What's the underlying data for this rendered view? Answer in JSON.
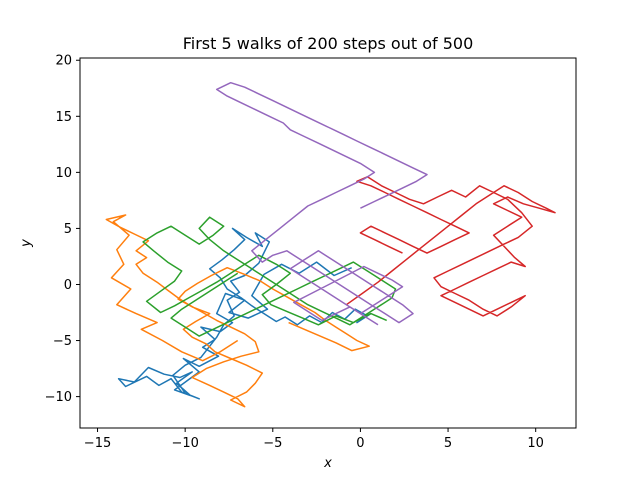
{
  "chart_data": {
    "type": "line",
    "title": "First 5 walks of 200 steps out of 500",
    "xlabel": "x",
    "ylabel": "y",
    "xlim": [
      -16,
      12.3
    ],
    "ylim": [
      -12.8,
      20.2
    ],
    "xticks": [
      -15,
      -10,
      -5,
      0,
      5,
      10
    ],
    "yticks": [
      -10,
      -5,
      0,
      5,
      10,
      15,
      20
    ],
    "grid": false,
    "series": [
      {
        "color": "#1f77b4",
        "x": [
          -0.5,
          -1.5,
          -2.5,
          -3.5,
          -4.5,
          -5.5,
          -6.2,
          -5.3,
          -6.4,
          -7.5,
          -6.6,
          -7.7,
          -8.2,
          -7.3,
          -8.0,
          -9.1,
          -8.3,
          -9.0,
          -8.1,
          -9.2,
          -10.1,
          -9.2,
          -9.9,
          -10.6,
          -9.7,
          -10.5,
          -9.6,
          -10.3,
          -11.2,
          -12.1,
          -12.9,
          -13.8,
          -13.4,
          -12.2,
          -11.5,
          -10.8,
          -10.2,
          -9.2,
          -10.0,
          -10.7,
          -10.0,
          -9.1,
          -8.2,
          -7.8,
          -7.2,
          -7.6,
          -6.9,
          -7.4,
          -6.6,
          -5.8,
          -5.2,
          -6.0,
          -5.6,
          -6.5,
          -7.3,
          -6.6,
          -7.2,
          -7.9,
          -8.6,
          -8.0,
          -7.6,
          -6.8,
          -6.2,
          -5.5,
          -4.8,
          -4.3,
          -3.6,
          -2.9,
          -2.2,
          -1.6,
          -0.9,
          -0.3,
          0.4,
          -0.2,
          0.6,
          0.1
        ],
        "y": [
          1.5,
          0.8,
          2.0,
          1.0,
          1.8,
          0.9,
          -1.0,
          -2.2,
          -3.0,
          -2.5,
          -1.4,
          -0.8,
          -2.6,
          -3.4,
          -4.2,
          -3.8,
          -4.9,
          -5.6,
          -6.4,
          -7.3,
          -6.6,
          -7.8,
          -8.6,
          -9.4,
          -9.9,
          -8.8,
          -7.8,
          -8.3,
          -8.0,
          -7.4,
          -8.7,
          -8.4,
          -9.1,
          -8.2,
          -9.0,
          -8.4,
          -9.6,
          -10.2,
          -9.7,
          -8.1,
          -7.2,
          -6.5,
          -4.7,
          -3.6,
          -2.8,
          -1.4,
          -0.7,
          0.3,
          0.8,
          1.9,
          3.8,
          4.6,
          3.4,
          4.2,
          5.0,
          4.0,
          3.1,
          2.2,
          1.4,
          0.6,
          -0.4,
          -1.2,
          -1.9,
          -2.6,
          -3.3,
          -2.9,
          -3.6,
          -2.8,
          -3.4,
          -2.5,
          -3.1,
          -2.2,
          -2.8,
          -3.4,
          -2.6,
          -3.0
        ]
      },
      {
        "color": "#ff7f0e",
        "x": [
          -7.0,
          -8.0,
          -9.0,
          -10.2,
          -11.3,
          -12.5,
          -11.6,
          -12.8,
          -13.9,
          -13.1,
          -14.2,
          -13.5,
          -13.9,
          -13.2,
          -14.1,
          -13.4,
          -14.5,
          -13.7,
          -12.9,
          -12.1,
          -12.8,
          -12.2,
          -12.8,
          -12.4,
          -11.6,
          -11.0,
          -10.4,
          -9.8,
          -9.0,
          -8.2,
          -7.4,
          -6.6,
          -6.0,
          -5.8,
          -6.8,
          -7.8,
          -8.8,
          -9.6,
          -8.6,
          -7.8,
          -7.0,
          -6.6,
          -7.4,
          -6.5,
          -6.0,
          -5.6,
          -6.5,
          -7.4,
          -8.3,
          -8.8,
          -9.6,
          -10.1,
          -9.4,
          -8.6,
          -9.6,
          -10.4,
          -10.0,
          -9.3,
          -8.5,
          -7.6,
          -6.6,
          -5.7,
          -5.0,
          -4.2,
          -3.4,
          -2.6,
          -2.0,
          -1.4,
          -0.8,
          -0.2,
          0.5,
          -0.5,
          -1.4,
          -2.3,
          -3.2,
          -4.1
        ],
        "y": [
          -5.0,
          -6.0,
          -6.8,
          -6.0,
          -5.0,
          -4.0,
          -3.4,
          -2.6,
          -1.8,
          -0.4,
          0.6,
          1.8,
          3.1,
          4.4,
          5.6,
          6.2,
          5.8,
          5.1,
          4.5,
          3.9,
          3.0,
          2.4,
          1.8,
          1.0,
          0.2,
          -0.5,
          -1.2,
          -1.8,
          -2.5,
          -3.2,
          -3.8,
          -4.4,
          -5.1,
          -6.0,
          -6.4,
          -6.9,
          -7.5,
          -8.3,
          -9.0,
          -9.6,
          -10.2,
          -10.9,
          -10.3,
          -9.6,
          -8.8,
          -7.9,
          -7.2,
          -6.6,
          -6.0,
          -5.3,
          -4.7,
          -4.0,
          -3.3,
          -2.6,
          -2.0,
          -1.3,
          -0.6,
          0.1,
          0.8,
          1.5,
          0.9,
          0.3,
          -0.4,
          -1.1,
          -1.8,
          -2.5,
          -3.2,
          -3.8,
          -4.4,
          -5.0,
          -5.5,
          -5.9,
          -5.2,
          -4.6,
          -4.0,
          -3.4
        ]
      },
      {
        "color": "#2ca02c",
        "x": [
          1.5,
          0.6,
          -0.4,
          -1.4,
          -2.4,
          -3.3,
          -4.2,
          -5.1,
          -5.6,
          -4.8,
          -4.0,
          -4.8,
          -5.8,
          -6.6,
          -7.4,
          -8.2,
          -9.0,
          -9.8,
          -10.6,
          -11.4,
          -12.2,
          -11.4,
          -10.6,
          -10.2,
          -11.0,
          -11.8,
          -12.4,
          -11.6,
          -10.8,
          -10.0,
          -9.2,
          -8.4,
          -7.8,
          -8.6,
          -9.2,
          -8.6,
          -7.8,
          -7.0,
          -6.2,
          -5.4,
          -4.6,
          -3.8,
          -3.0,
          -2.2,
          -1.4,
          -0.6,
          0.2,
          1.0,
          1.8,
          2.0,
          1.2,
          0.4,
          -0.4,
          -1.2,
          -2.0,
          -2.8,
          -3.6,
          -4.4,
          -5.2,
          -6.0,
          -6.8,
          -7.6,
          -8.4,
          -9.2,
          -10.0,
          -10.8,
          -10.2,
          -9.4,
          -8.6,
          -7.8,
          -7.0
        ],
        "y": [
          -3.2,
          -2.6,
          -3.4,
          -2.8,
          -3.6,
          -3.0,
          -2.4,
          -1.8,
          -0.9,
          0.0,
          1.0,
          1.8,
          2.6,
          1.8,
          1.0,
          0.2,
          -0.5,
          -1.2,
          -1.9,
          -2.5,
          -1.5,
          -0.6,
          0.3,
          1.2,
          2.0,
          3.0,
          3.8,
          4.6,
          5.2,
          4.4,
          3.6,
          4.4,
          5.2,
          6.0,
          5.0,
          4.0,
          3.0,
          2.2,
          1.4,
          0.6,
          -0.2,
          -1.0,
          -1.8,
          -2.4,
          -3.0,
          -3.6,
          -2.8,
          -2.0,
          -1.2,
          -0.4,
          0.4,
          1.2,
          2.0,
          1.4,
          0.8,
          0.2,
          -0.4,
          -1.0,
          -1.6,
          -2.2,
          -2.8,
          -3.4,
          -4.0,
          -4.6,
          -3.8,
          -3.0,
          -2.2,
          -1.4,
          -0.6,
          0.2,
          1.0
        ]
      },
      {
        "color": "#d62728",
        "x": [
          -0.8,
          0.1,
          1.0,
          1.8,
          2.6,
          3.4,
          4.2,
          5.0,
          5.8,
          6.6,
          7.4,
          8.2,
          9.0,
          9.8,
          10.6,
          11.1,
          10.2,
          9.3,
          8.4,
          7.6,
          8.4,
          9.2,
          8.4,
          7.6,
          8.2,
          8.8,
          9.4,
          8.6,
          7.8,
          7.0,
          6.2,
          5.4,
          4.6,
          5.4,
          6.2,
          7.0,
          7.8,
          8.6,
          9.4,
          8.6,
          7.8,
          7.0,
          6.2,
          5.4,
          4.6,
          4.2,
          5.0,
          5.8,
          6.6,
          7.4,
          8.2,
          9.0,
          9.8,
          9.2,
          8.4,
          7.6,
          6.8,
          6.0,
          5.2,
          4.4,
          3.6,
          2.8,
          2.0,
          1.2,
          0.4,
          -0.2,
          0.6,
          1.4,
          2.2,
          3.0,
          3.8,
          4.6,
          5.4,
          6.2,
          5.4,
          4.6,
          3.8,
          3.0,
          2.2,
          1.4,
          0.6,
          0.0,
          0.8,
          1.6,
          2.4
        ],
        "y": [
          -1.8,
          -0.8,
          0.2,
          1.2,
          2.2,
          3.2,
          4.2,
          5.2,
          6.2,
          7.2,
          8.0,
          8.8,
          8.2,
          7.4,
          6.8,
          6.4,
          6.8,
          7.2,
          7.8,
          7.2,
          6.6,
          6.0,
          5.2,
          4.4,
          3.4,
          2.4,
          1.6,
          2.0,
          1.4,
          0.8,
          0.2,
          -0.4,
          -1.0,
          -1.6,
          -2.2,
          -2.8,
          -2.2,
          -1.6,
          -1.0,
          -2.0,
          -2.8,
          -2.2,
          -1.4,
          -0.8,
          -0.2,
          0.6,
          1.2,
          1.8,
          2.4,
          3.0,
          3.6,
          4.2,
          5.2,
          6.4,
          7.6,
          8.2,
          8.8,
          7.8,
          8.4,
          7.8,
          7.2,
          7.6,
          8.2,
          8.8,
          9.6,
          9.2,
          8.8,
          8.2,
          7.6,
          7.0,
          6.4,
          5.8,
          5.2,
          4.6,
          4.0,
          3.4,
          2.8,
          3.4,
          4.0,
          4.6,
          5.2,
          4.6,
          4.0,
          3.4,
          2.8
        ]
      },
      {
        "color": "#9467bd",
        "x": [
          1.0,
          0.2,
          -0.6,
          -1.4,
          -2.2,
          -3.0,
          -3.8,
          -2.8,
          -1.8,
          -0.8,
          0.2,
          1.0,
          1.8,
          2.4,
          1.6,
          0.8,
          0.0,
          -0.8,
          -1.6,
          -2.4,
          -3.2,
          -4.0,
          -3.2,
          -2.4,
          -1.6,
          -0.8,
          0.0,
          0.8,
          1.6,
          2.4,
          3.0,
          2.2,
          1.4,
          0.6,
          -0.2,
          -1.0,
          -1.8,
          -2.6,
          -3.4,
          -4.2,
          -5.0,
          -5.6,
          -6.2,
          -5.4,
          -4.6,
          -3.8,
          -3.0,
          -2.2,
          -1.4,
          -0.6,
          0.2,
          0.8,
          0.0,
          -0.8,
          -1.6,
          -2.4,
          -3.2,
          -4.0,
          -4.4,
          -5.2,
          -6.0,
          -6.8,
          -7.6,
          -8.2,
          -7.4,
          -6.6,
          -5.8,
          -5.0,
          -4.2,
          -3.4,
          -2.6,
          -1.8,
          -1.0,
          -0.2,
          0.6,
          1.4,
          2.2,
          3.0,
          3.8,
          3.2,
          2.4,
          1.6,
          0.8,
          0.0
        ],
        "y": [
          -3.6,
          -2.8,
          -2.0,
          -2.6,
          -3.2,
          -2.4,
          -1.6,
          -0.8,
          0.0,
          0.8,
          1.6,
          1.0,
          0.4,
          -0.2,
          -1.0,
          -1.8,
          -2.6,
          -1.8,
          -1.0,
          -0.2,
          0.6,
          1.4,
          2.2,
          3.0,
          2.2,
          1.4,
          0.6,
          -0.2,
          -1.0,
          -1.8,
          -2.6,
          -3.4,
          -2.6,
          -1.8,
          -1.0,
          -0.2,
          0.6,
          1.4,
          2.2,
          3.0,
          2.6,
          2.0,
          3.0,
          4.0,
          5.0,
          6.0,
          7.0,
          7.6,
          8.2,
          8.8,
          9.4,
          10.0,
          10.8,
          11.4,
          12.0,
          12.6,
          13.2,
          13.8,
          14.4,
          15.0,
          15.6,
          16.2,
          16.8,
          17.4,
          18.0,
          17.6,
          17.0,
          16.4,
          15.8,
          15.2,
          14.6,
          14.0,
          13.4,
          12.8,
          12.2,
          11.6,
          11.0,
          10.4,
          9.8,
          9.2,
          8.6,
          8.0,
          7.4,
          6.8
        ]
      }
    ]
  }
}
